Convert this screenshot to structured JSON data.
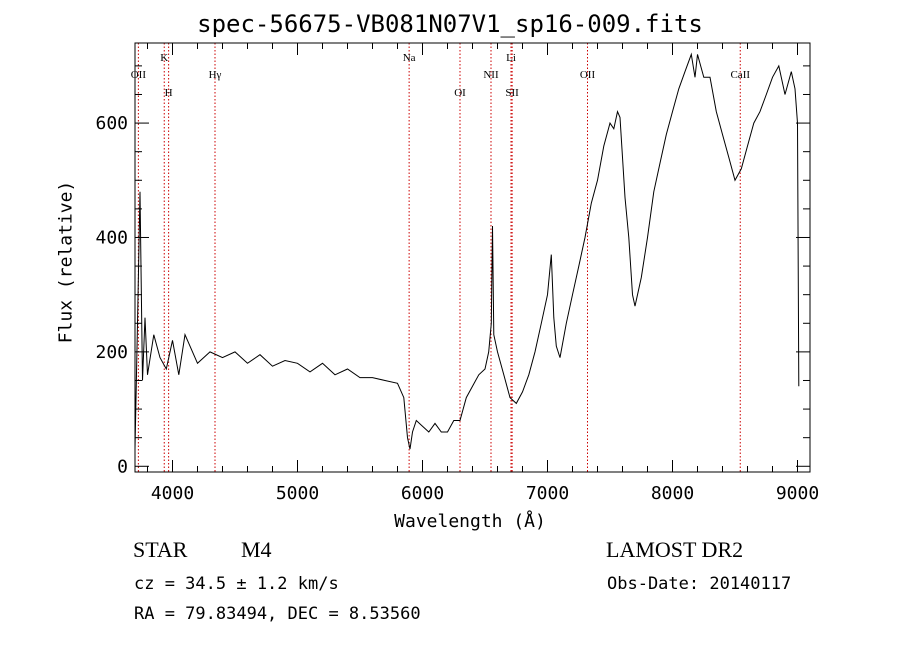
{
  "title": "spec-56675-VB081N07V1_sp16-009.fits",
  "info": {
    "obj_class": "STAR",
    "obj_subclass": "M4",
    "survey": "LAMOST DR2",
    "cz": "cz = 34.5 ± 1.2 km/s",
    "obs_date": "Obs-Date: 20140117",
    "radec": "RA =  79.83494, DEC =   8.53560"
  },
  "chart_data": {
    "type": "line",
    "title": "spec-56675-VB081N07V1_sp16-009.fits",
    "xlabel": "Wavelength (Å)",
    "ylabel": "Flux (relative)",
    "xlim": [
      3700,
      9100
    ],
    "ylim": [
      -10,
      740
    ],
    "xticks": [
      4000,
      5000,
      6000,
      7000,
      8000,
      9000
    ],
    "yticks": [
      0,
      200,
      400,
      600
    ],
    "grid": false,
    "line_color": "#000000",
    "marker_color": "#cc0000",
    "series": [
      {
        "x": [
          3700,
          3720,
          3740,
          3760,
          3780,
          3800,
          3850,
          3900,
          3950,
          4000,
          4050,
          4100,
          4200,
          4300,
          4400,
          4500,
          4600,
          4700,
          4800,
          4900,
          5000,
          5100,
          5200,
          5300,
          5400,
          5500,
          5600,
          5700,
          5800,
          5850,
          5880,
          5900,
          5920,
          5950,
          6000,
          6050,
          6100,
          6150,
          6200,
          6250,
          6300,
          6350,
          6400,
          6450,
          6500,
          6530,
          6550,
          6560,
          6570,
          6600,
          6650,
          6700,
          6750,
          6800,
          6850,
          6900,
          6950,
          7000,
          7030,
          7050,
          7070,
          7100,
          7150,
          7200,
          7250,
          7300,
          7350,
          7400,
          7450,
          7500,
          7530,
          7560,
          7580,
          7600,
          7620,
          7650,
          7680,
          7700,
          7750,
          7800,
          7850,
          7900,
          7950,
          8000,
          8050,
          8100,
          8150,
          8180,
          8200,
          8250,
          8300,
          8350,
          8400,
          8450,
          8500,
          8550,
          8600,
          8650,
          8700,
          8750,
          8800,
          8850,
          8900,
          8950,
          8980,
          9000,
          9010
        ],
        "y": [
          30,
          250,
          480,
          150,
          260,
          160,
          230,
          190,
          170,
          220,
          160,
          230,
          180,
          200,
          190,
          200,
          180,
          195,
          175,
          185,
          180,
          165,
          180,
          160,
          170,
          155,
          155,
          150,
          145,
          120,
          50,
          30,
          60,
          80,
          70,
          60,
          75,
          60,
          60,
          80,
          80,
          120,
          140,
          160,
          170,
          200,
          250,
          420,
          230,
          200,
          160,
          120,
          110,
          130,
          160,
          200,
          250,
          300,
          370,
          260,
          210,
          190,
          250,
          300,
          350,
          400,
          460,
          500,
          560,
          600,
          590,
          620,
          610,
          540,
          470,
          400,
          300,
          280,
          330,
          400,
          480,
          530,
          580,
          620,
          660,
          690,
          720,
          680,
          720,
          680,
          680,
          620,
          580,
          540,
          500,
          520,
          560,
          600,
          620,
          650,
          680,
          700,
          650,
          690,
          660,
          600,
          140
        ]
      }
    ],
    "annotations": [
      {
        "label": "OII",
        "x": 3727
      },
      {
        "label": "K",
        "x": 3934
      },
      {
        "label": "H",
        "x": 3969
      },
      {
        "label": "Hγ",
        "x": 4340
      },
      {
        "label": "Na",
        "x": 5893
      },
      {
        "label": "OI",
        "x": 6300
      },
      {
        "label": "NII",
        "x": 6548
      },
      {
        "label": "Li",
        "x": 6708
      },
      {
        "label": "SII",
        "x": 6717
      },
      {
        "label": "OII",
        "x": 7320
      },
      {
        "label": "CaII",
        "x": 8542
      }
    ]
  }
}
